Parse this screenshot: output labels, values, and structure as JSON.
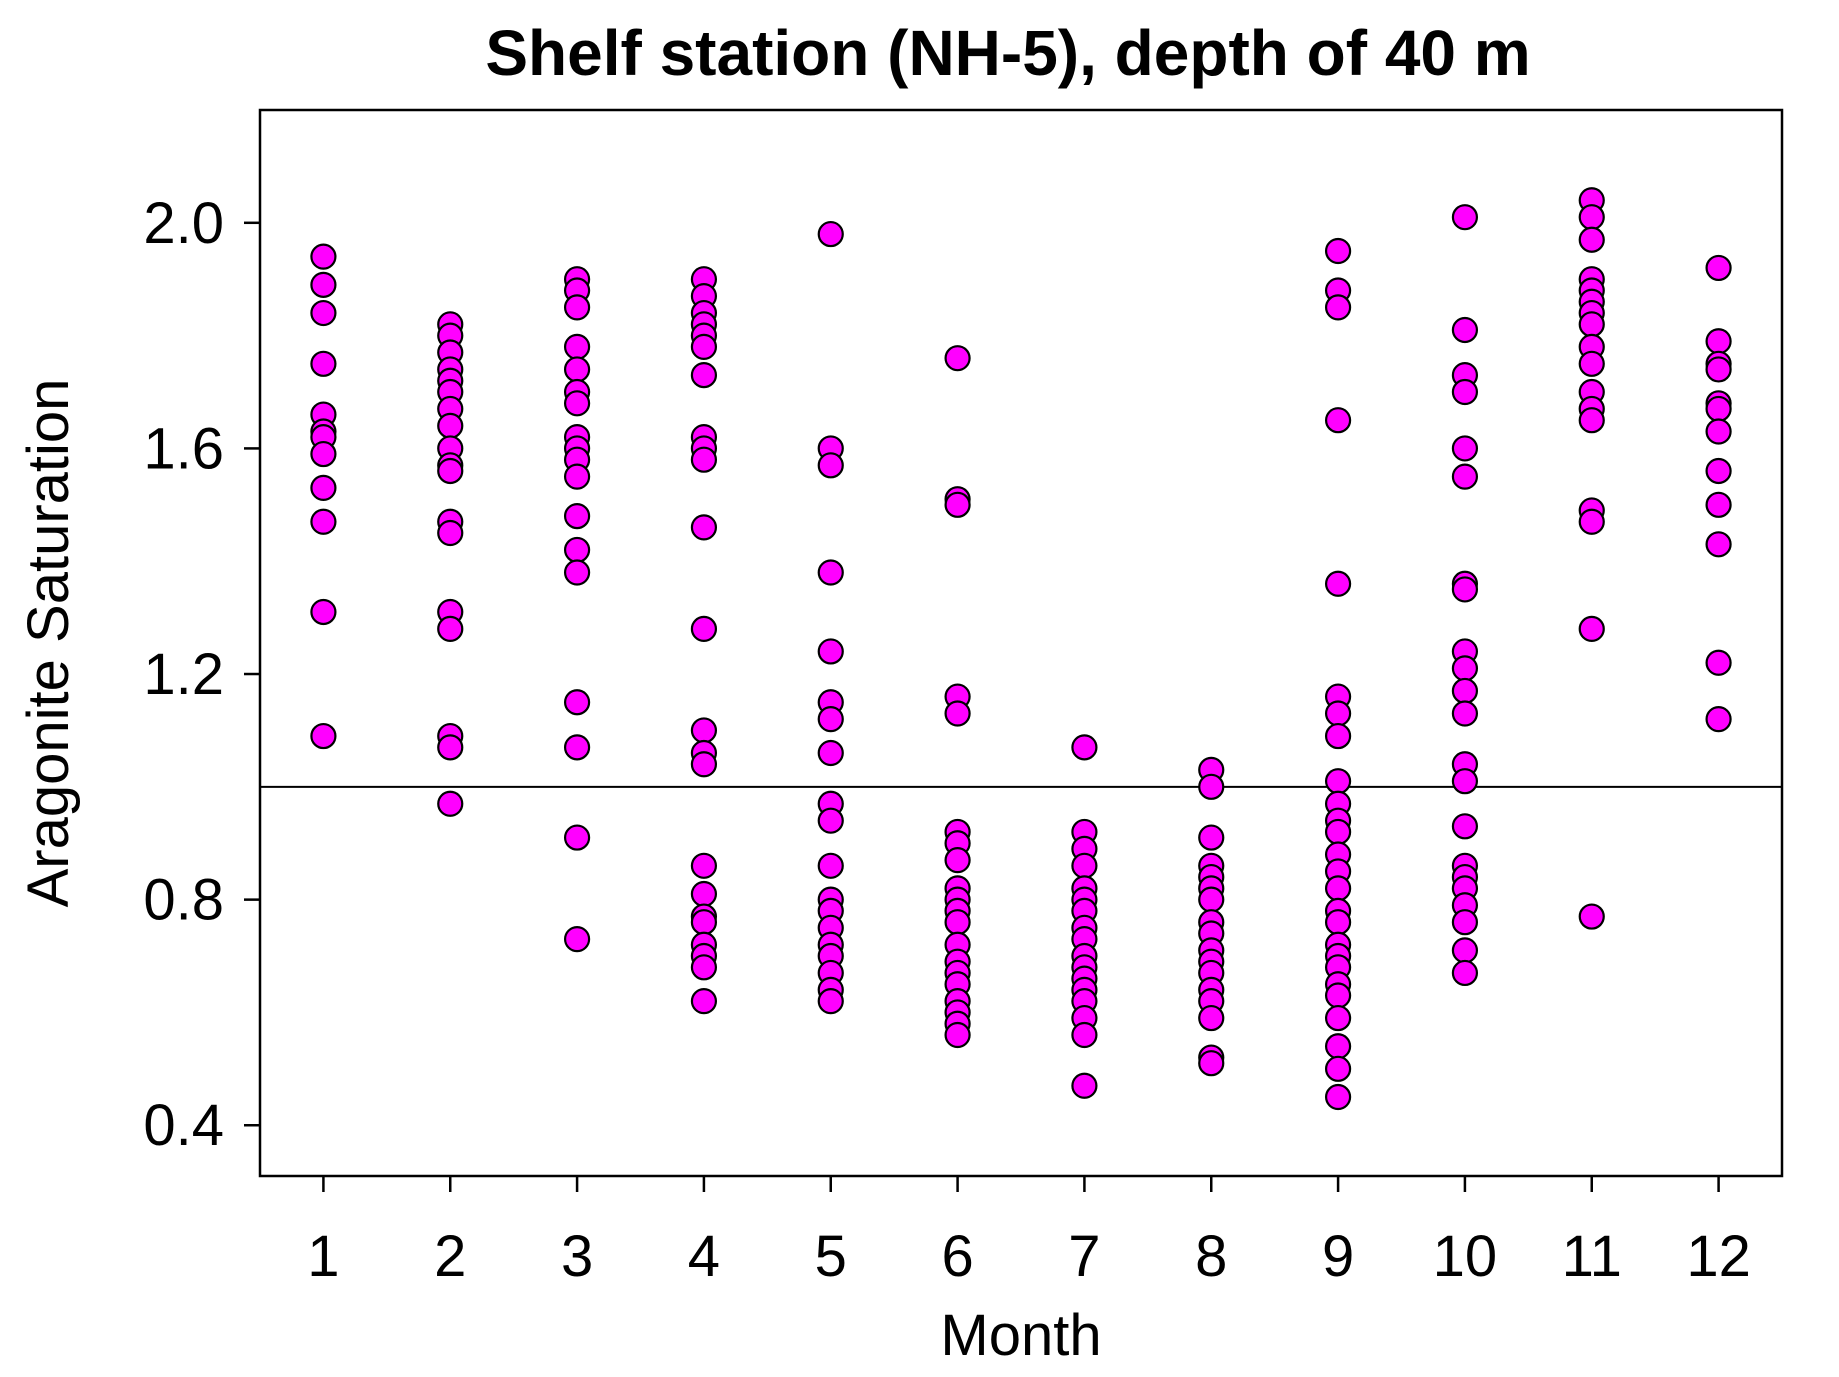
{
  "chart_data": {
    "type": "scatter",
    "title": "Shelf station (NH-5), depth of 40 m",
    "xlabel": "Month",
    "ylabel": "Aragonite Saturation",
    "xlim": [
      0.5,
      12.5
    ],
    "ylim": [
      0.31,
      2.2
    ],
    "x_ticks": [
      1,
      2,
      3,
      4,
      5,
      6,
      7,
      8,
      9,
      10,
      11,
      12
    ],
    "y_ticks": [
      0.4,
      0.8,
      1.2,
      1.6,
      2.0
    ],
    "y_tick_labels": [
      "0.4",
      "0.8",
      "1.2",
      "1.6",
      "2.0"
    ],
    "reference_line_y": 1.0,
    "marker_color": "#ff00ff",
    "marker_edge_color": "#000000",
    "grid": false,
    "legend": "none",
    "series": [
      {
        "points": [
          [
            1,
            1.94
          ],
          [
            1,
            1.89
          ],
          [
            1,
            1.84
          ],
          [
            1,
            1.75
          ],
          [
            1,
            1.66
          ],
          [
            1,
            1.63
          ],
          [
            1,
            1.62
          ],
          [
            1,
            1.59
          ],
          [
            1,
            1.53
          ],
          [
            1,
            1.47
          ],
          [
            1,
            1.31
          ],
          [
            1,
            1.09
          ],
          [
            2,
            1.82
          ],
          [
            2,
            1.8
          ],
          [
            2,
            1.77
          ],
          [
            2,
            1.74
          ],
          [
            2,
            1.72
          ],
          [
            2,
            1.7
          ],
          [
            2,
            1.67
          ],
          [
            2,
            1.64
          ],
          [
            2,
            1.6
          ],
          [
            2,
            1.57
          ],
          [
            2,
            1.56
          ],
          [
            2,
            1.47
          ],
          [
            2,
            1.45
          ],
          [
            2,
            1.31
          ],
          [
            2,
            1.28
          ],
          [
            2,
            1.09
          ],
          [
            2,
            1.07
          ],
          [
            2,
            0.97
          ],
          [
            3,
            1.9
          ],
          [
            3,
            1.88
          ],
          [
            3,
            1.85
          ],
          [
            3,
            1.78
          ],
          [
            3,
            1.74
          ],
          [
            3,
            1.7
          ],
          [
            3,
            1.68
          ],
          [
            3,
            1.62
          ],
          [
            3,
            1.6
          ],
          [
            3,
            1.58
          ],
          [
            3,
            1.55
          ],
          [
            3,
            1.48
          ],
          [
            3,
            1.42
          ],
          [
            3,
            1.38
          ],
          [
            3,
            1.15
          ],
          [
            3,
            1.07
          ],
          [
            3,
            0.91
          ],
          [
            3,
            0.73
          ],
          [
            4,
            1.9
          ],
          [
            4,
            1.87
          ],
          [
            4,
            1.84
          ],
          [
            4,
            1.82
          ],
          [
            4,
            1.8
          ],
          [
            4,
            1.78
          ],
          [
            4,
            1.73
          ],
          [
            4,
            1.62
          ],
          [
            4,
            1.6
          ],
          [
            4,
            1.58
          ],
          [
            4,
            1.46
          ],
          [
            4,
            1.28
          ],
          [
            4,
            1.1
          ],
          [
            4,
            1.06
          ],
          [
            4,
            1.04
          ],
          [
            4,
            0.86
          ],
          [
            4,
            0.81
          ],
          [
            4,
            0.77
          ],
          [
            4,
            0.76
          ],
          [
            4,
            0.72
          ],
          [
            4,
            0.7
          ],
          [
            4,
            0.68
          ],
          [
            4,
            0.62
          ],
          [
            5,
            1.98
          ],
          [
            5,
            1.6
          ],
          [
            5,
            1.57
          ],
          [
            5,
            1.38
          ],
          [
            5,
            1.24
          ],
          [
            5,
            1.15
          ],
          [
            5,
            1.12
          ],
          [
            5,
            1.06
          ],
          [
            5,
            0.97
          ],
          [
            5,
            0.94
          ],
          [
            5,
            0.86
          ],
          [
            5,
            0.8
          ],
          [
            5,
            0.78
          ],
          [
            5,
            0.75
          ],
          [
            5,
            0.72
          ],
          [
            5,
            0.7
          ],
          [
            5,
            0.67
          ],
          [
            5,
            0.64
          ],
          [
            5,
            0.62
          ],
          [
            6,
            1.76
          ],
          [
            6,
            1.51
          ],
          [
            6,
            1.5
          ],
          [
            6,
            1.16
          ],
          [
            6,
            1.13
          ],
          [
            6,
            0.92
          ],
          [
            6,
            0.9
          ],
          [
            6,
            0.87
          ],
          [
            6,
            0.82
          ],
          [
            6,
            0.8
          ],
          [
            6,
            0.78
          ],
          [
            6,
            0.76
          ],
          [
            6,
            0.72
          ],
          [
            6,
            0.69
          ],
          [
            6,
            0.67
          ],
          [
            6,
            0.65
          ],
          [
            6,
            0.62
          ],
          [
            6,
            0.6
          ],
          [
            6,
            0.58
          ],
          [
            6,
            0.56
          ],
          [
            7,
            1.07
          ],
          [
            7,
            0.92
          ],
          [
            7,
            0.89
          ],
          [
            7,
            0.86
          ],
          [
            7,
            0.82
          ],
          [
            7,
            0.8
          ],
          [
            7,
            0.78
          ],
          [
            7,
            0.75
          ],
          [
            7,
            0.73
          ],
          [
            7,
            0.7
          ],
          [
            7,
            0.68
          ],
          [
            7,
            0.66
          ],
          [
            7,
            0.64
          ],
          [
            7,
            0.62
          ],
          [
            7,
            0.59
          ],
          [
            7,
            0.56
          ],
          [
            7,
            0.47
          ],
          [
            8,
            1.03
          ],
          [
            8,
            1.0
          ],
          [
            8,
            0.91
          ],
          [
            8,
            0.86
          ],
          [
            8,
            0.84
          ],
          [
            8,
            0.82
          ],
          [
            8,
            0.8
          ],
          [
            8,
            0.76
          ],
          [
            8,
            0.74
          ],
          [
            8,
            0.71
          ],
          [
            8,
            0.69
          ],
          [
            8,
            0.67
          ],
          [
            8,
            0.64
          ],
          [
            8,
            0.62
          ],
          [
            8,
            0.59
          ],
          [
            8,
            0.52
          ],
          [
            8,
            0.51
          ],
          [
            9,
            1.95
          ],
          [
            9,
            1.88
          ],
          [
            9,
            1.85
          ],
          [
            9,
            1.65
          ],
          [
            9,
            1.36
          ],
          [
            9,
            1.16
          ],
          [
            9,
            1.13
          ],
          [
            9,
            1.09
          ],
          [
            9,
            1.01
          ],
          [
            9,
            0.97
          ],
          [
            9,
            0.94
          ],
          [
            9,
            0.92
          ],
          [
            9,
            0.88
          ],
          [
            9,
            0.85
          ],
          [
            9,
            0.82
          ],
          [
            9,
            0.78
          ],
          [
            9,
            0.76
          ],
          [
            9,
            0.72
          ],
          [
            9,
            0.7
          ],
          [
            9,
            0.68
          ],
          [
            9,
            0.65
          ],
          [
            9,
            0.63
          ],
          [
            9,
            0.59
          ],
          [
            9,
            0.54
          ],
          [
            9,
            0.5
          ],
          [
            9,
            0.45
          ],
          [
            10,
            2.01
          ],
          [
            10,
            1.81
          ],
          [
            10,
            1.73
          ],
          [
            10,
            1.7
          ],
          [
            10,
            1.6
          ],
          [
            10,
            1.55
          ],
          [
            10,
            1.36
          ],
          [
            10,
            1.35
          ],
          [
            10,
            1.24
          ],
          [
            10,
            1.21
          ],
          [
            10,
            1.17
          ],
          [
            10,
            1.13
          ],
          [
            10,
            1.04
          ],
          [
            10,
            1.01
          ],
          [
            10,
            0.93
          ],
          [
            10,
            0.86
          ],
          [
            10,
            0.84
          ],
          [
            10,
            0.82
          ],
          [
            10,
            0.79
          ],
          [
            10,
            0.76
          ],
          [
            10,
            0.71
          ],
          [
            10,
            0.67
          ],
          [
            11,
            2.04
          ],
          [
            11,
            2.01
          ],
          [
            11,
            1.97
          ],
          [
            11,
            1.9
          ],
          [
            11,
            1.88
          ],
          [
            11,
            1.86
          ],
          [
            11,
            1.84
          ],
          [
            11,
            1.82
          ],
          [
            11,
            1.78
          ],
          [
            11,
            1.75
          ],
          [
            11,
            1.7
          ],
          [
            11,
            1.67
          ],
          [
            11,
            1.65
          ],
          [
            11,
            1.49
          ],
          [
            11,
            1.47
          ],
          [
            11,
            1.28
          ],
          [
            11,
            0.77
          ],
          [
            12,
            1.92
          ],
          [
            12,
            1.79
          ],
          [
            12,
            1.75
          ],
          [
            12,
            1.74
          ],
          [
            12,
            1.68
          ],
          [
            12,
            1.67
          ],
          [
            12,
            1.63
          ],
          [
            12,
            1.56
          ],
          [
            12,
            1.5
          ],
          [
            12,
            1.43
          ],
          [
            12,
            1.22
          ],
          [
            12,
            1.12
          ]
        ]
      }
    ]
  }
}
